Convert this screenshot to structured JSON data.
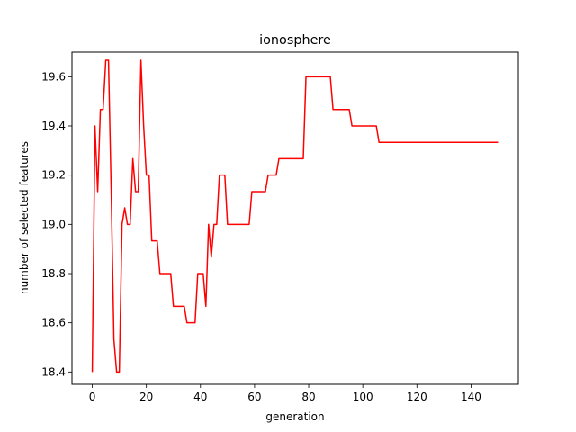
{
  "chart_data": {
    "type": "line",
    "title": "ionosphere",
    "xlabel": "generation",
    "ylabel": "number of selected features",
    "xlim": [
      -7.5,
      157.5
    ],
    "ylim": [
      18.35,
      19.7
    ],
    "xticks": [
      0,
      20,
      40,
      60,
      80,
      100,
      120,
      140
    ],
    "xtick_labels": [
      "0",
      "20",
      "40",
      "60",
      "80",
      "100",
      "120",
      "140"
    ],
    "yticks": [
      18.4,
      18.6,
      18.8,
      19.0,
      19.2,
      19.4,
      19.6
    ],
    "ytick_labels": [
      "18.4",
      "18.6",
      "18.8",
      "19.0",
      "19.2",
      "19.4",
      "19.6"
    ],
    "grid": false,
    "legend": false,
    "series": [
      {
        "color": "#ff0000",
        "x": [
          0,
          1,
          2,
          3,
          4,
          5,
          6,
          7,
          8,
          9,
          10,
          11,
          12,
          13,
          14,
          15,
          16,
          17,
          18,
          19,
          20,
          21,
          22,
          23,
          24,
          25,
          26,
          27,
          28,
          29,
          30,
          31,
          32,
          33,
          34,
          35,
          36,
          37,
          38,
          39,
          40,
          41,
          42,
          43,
          44,
          45,
          46,
          47,
          48,
          49,
          50,
          51,
          52,
          53,
          54,
          55,
          56,
          57,
          58,
          59,
          60,
          61,
          62,
          63,
          64,
          65,
          66,
          67,
          68,
          69,
          70,
          71,
          72,
          73,
          74,
          75,
          76,
          77,
          78,
          79,
          80,
          81,
          82,
          83,
          84,
          85,
          86,
          87,
          88,
          89,
          90,
          91,
          92,
          93,
          94,
          95,
          96,
          97,
          98,
          99,
          100,
          101,
          102,
          103,
          104,
          105,
          106,
          150
        ],
        "y": [
          18.4,
          19.4,
          19.133,
          19.467,
          19.467,
          19.667,
          19.667,
          19.133,
          18.533,
          18.4,
          18.4,
          19.0,
          19.067,
          19.0,
          19.0,
          19.267,
          19.133,
          19.133,
          19.667,
          19.4,
          19.2,
          19.2,
          18.933,
          18.933,
          18.933,
          18.8,
          18.8,
          18.8,
          18.8,
          18.8,
          18.667,
          18.667,
          18.667,
          18.667,
          18.667,
          18.6,
          18.6,
          18.6,
          18.6,
          18.8,
          18.8,
          18.8,
          18.667,
          19.0,
          18.867,
          19.0,
          19.0,
          19.2,
          19.2,
          19.2,
          19.0,
          19.0,
          19.0,
          19.0,
          19.0,
          19.0,
          19.0,
          19.0,
          19.0,
          19.133,
          19.133,
          19.133,
          19.133,
          19.133,
          19.133,
          19.2,
          19.2,
          19.2,
          19.2,
          19.267,
          19.267,
          19.267,
          19.267,
          19.267,
          19.267,
          19.267,
          19.267,
          19.267,
          19.267,
          19.6,
          19.6,
          19.6,
          19.6,
          19.6,
          19.6,
          19.6,
          19.6,
          19.6,
          19.6,
          19.467,
          19.467,
          19.467,
          19.467,
          19.467,
          19.467,
          19.467,
          19.4,
          19.4,
          19.4,
          19.4,
          19.4,
          19.4,
          19.4,
          19.4,
          19.4,
          19.4,
          19.333,
          19.333
        ]
      }
    ]
  }
}
